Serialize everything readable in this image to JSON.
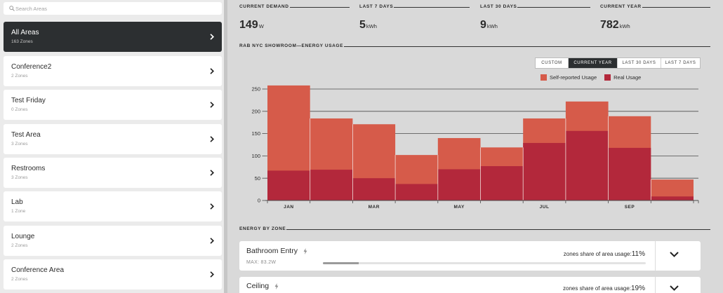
{
  "sidebar": {
    "search": {
      "placeholder": "Search Areas",
      "icon": "search-icon"
    },
    "item_icon": "chevron-right-icon",
    "areas": [
      {
        "name": "All Areas",
        "zones": "163 Zones",
        "selected": true
      },
      {
        "name": "Conference2",
        "zones": "2 Zones",
        "selected": false
      },
      {
        "name": "Test Friday",
        "zones": "0 Zones",
        "selected": false
      },
      {
        "name": "Test Area",
        "zones": "3 Zones",
        "selected": false
      },
      {
        "name": "Restrooms",
        "zones": "3 Zones",
        "selected": false
      },
      {
        "name": "Lab",
        "zones": "1 Zone",
        "selected": false
      },
      {
        "name": "Lounge",
        "zones": "2 Zones",
        "selected": false
      },
      {
        "name": "Conference Area",
        "zones": "2 Zones",
        "selected": false
      }
    ]
  },
  "stats": [
    {
      "label": "CURRENT DEMAND",
      "value": "149",
      "unit": "W"
    },
    {
      "label": "LAST 7 DAYS",
      "value": "5",
      "unit": "kWh"
    },
    {
      "label": "LAST 30 DAYS",
      "value": "9",
      "unit": "kWh"
    },
    {
      "label": "CURRENT YEAR",
      "value": "782",
      "unit": "kWh"
    }
  ],
  "usage": {
    "ranges": [
      {
        "label": "CUSTOM",
        "active": false
      },
      {
        "label": "CURRENT YEAR",
        "active": true
      },
      {
        "label": "LAST 30 DAYS",
        "active": false
      },
      {
        "label": "LAST 7 DAYS",
        "active": false
      }
    ]
  },
  "chart_data": {
    "type": "bar",
    "mode": "overlay",
    "title": "RAB NYC SHOWROOM—ENERGY USAGE",
    "xlabel": "",
    "ylabel": "",
    "x_tick_labels": [
      "JAN",
      "",
      "MAR",
      "",
      "MAY",
      "",
      "JUL",
      "",
      "SEP",
      ""
    ],
    "y_ticks": [
      0,
      50,
      100,
      150,
      200,
      250
    ],
    "ylim": [
      0,
      260
    ],
    "grid": true,
    "legend": "top-right",
    "series": [
      {
        "name": "Self-reported Usage",
        "color": "#d65b4a",
        "values": [
          258,
          184,
          171,
          102,
          140,
          119,
          184,
          222,
          189,
          47
        ]
      },
      {
        "name": "Real Usage",
        "color": "#b3283b",
        "values": [
          67,
          69,
          50,
          37,
          70,
          77,
          129,
          156,
          118,
          9
        ]
      }
    ]
  },
  "zones": {
    "heading": "ENERGY BY ZONE",
    "item_icon": "lightning-icon",
    "expand_icon": "chevron-down-icon",
    "items": [
      {
        "name": "Bathroom Entry",
        "max": "MAX: 83.2W",
        "level": 0.11,
        "share_label": "zones share of area usage:",
        "share": "11%"
      },
      {
        "name": "Ceiling",
        "share_label": "zones share of area usage:",
        "share": "19%"
      }
    ]
  },
  "colors": {
    "selected_item_bg": "#2c2f31",
    "active_range_bg": "#2c2f31",
    "usage_bar_fill": "#9a9a9a"
  }
}
